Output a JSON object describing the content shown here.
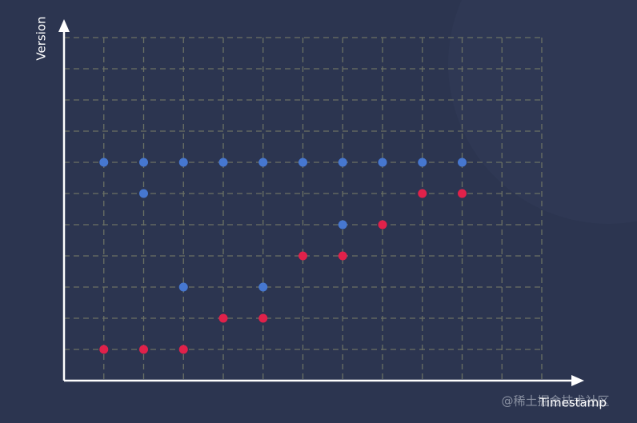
{
  "chart_data": {
    "type": "scatter",
    "x_label": "Timestamp",
    "y_label": "Version",
    "watermark": "@稀土掘金技术社区",
    "xlim": [
      0,
      12
    ],
    "ylim": [
      0,
      11
    ],
    "xticks": [
      1,
      2,
      3,
      4,
      5,
      6,
      7,
      8,
      9,
      10,
      11,
      12
    ],
    "yticks": [
      1,
      2,
      3,
      4,
      5,
      6,
      7,
      8,
      9,
      10,
      11
    ],
    "grid": true,
    "series": [
      {
        "color": "#4677d0",
        "x": [
          1,
          2,
          3,
          4,
          5,
          6,
          7,
          8,
          9,
          10,
          2,
          7,
          3,
          5
        ],
        "values": [
          7,
          7,
          7,
          7,
          7,
          7,
          7,
          7,
          7,
          7,
          6,
          5,
          3,
          3
        ]
      },
      {
        "color": "#e0214a",
        "x": [
          1,
          2,
          3,
          4,
          5,
          6,
          7,
          8,
          9,
          10
        ],
        "values": [
          1,
          1,
          1,
          2,
          2,
          4,
          4,
          5,
          6,
          6
        ]
      }
    ]
  }
}
